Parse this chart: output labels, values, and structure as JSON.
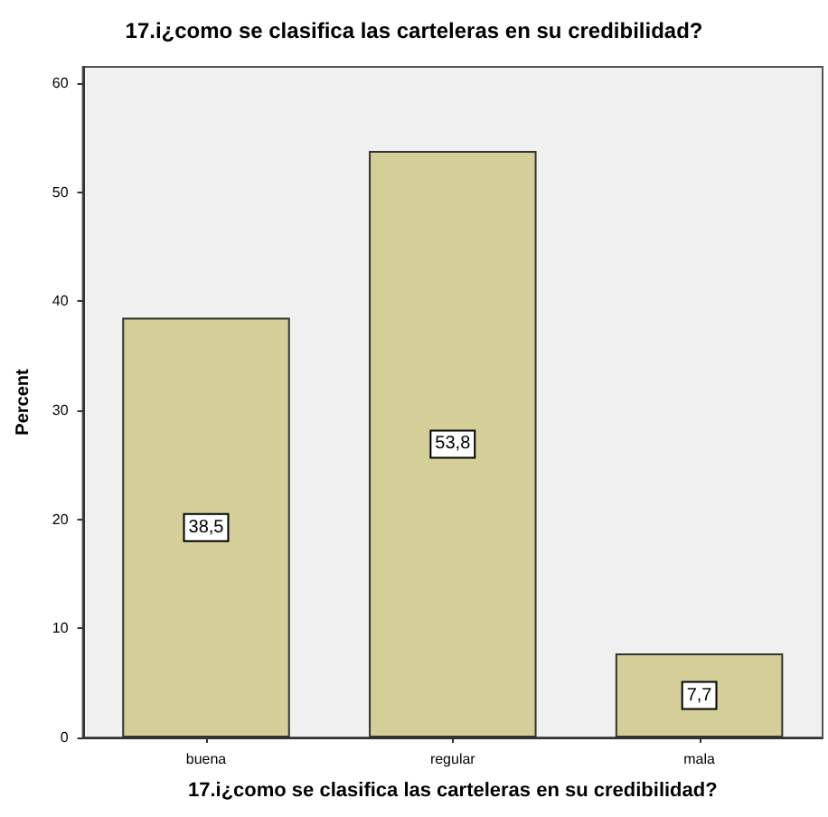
{
  "chart_data": {
    "type": "bar",
    "title": "17.i¿como se clasifica las carteleras en su credibilidad?",
    "xlabel": "17.i¿como se clasifica las carteleras en su credibilidad?",
    "ylabel": "Percent",
    "categories": [
      "buena",
      "regular",
      "mala"
    ],
    "values": [
      38.5,
      53.8,
      7.7
    ],
    "value_labels": [
      "38,5",
      "53,8",
      "7,7"
    ],
    "color": "#d4cf98",
    "ylim": [
      0,
      61.5
    ],
    "yticks": [
      0,
      10,
      20,
      30,
      40,
      50,
      60
    ],
    "grid": false
  }
}
